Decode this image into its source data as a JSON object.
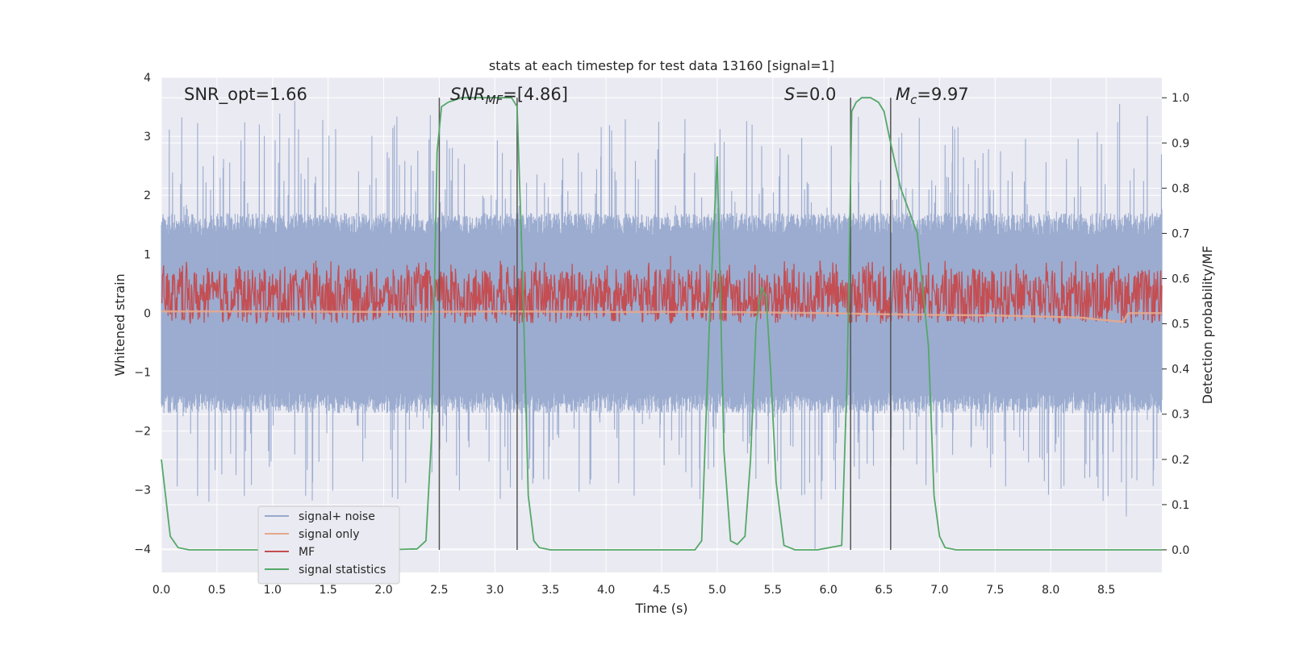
{
  "chart_data": {
    "type": "line",
    "title": "stats at each timestep for test data 13160 [signal=1]",
    "xlabel": "Time (s)",
    "ylabel": "Whitened strain",
    "y2label": "Detection probability/MF",
    "xlim": [
      0,
      9.0
    ],
    "ylim": [
      -4.4,
      4.0
    ],
    "y2lim": [
      -0.05,
      1.045
    ],
    "xticks": [
      "0.0",
      "0.5",
      "1.0",
      "1.5",
      "2.0",
      "2.5",
      "3.0",
      "3.5",
      "4.0",
      "4.5",
      "5.0",
      "5.5",
      "6.0",
      "6.5",
      "7.0",
      "7.5",
      "8.0",
      "8.5"
    ],
    "yticks": [
      "4",
      "3",
      "2",
      "1",
      "0",
      "−1",
      "−2",
      "−3",
      "−4"
    ],
    "y2ticks": [
      "1.0",
      "0.9",
      "0.8",
      "0.7",
      "0.6",
      "0.5",
      "0.4",
      "0.3",
      "0.2",
      "0.1",
      "0.0"
    ],
    "grid": true,
    "annotations": {
      "snr_opt": "SNR_opt=1.66",
      "snr_mf_var": "SNR",
      "snr_mf_sub": "MF",
      "snr_mf_val": "=[4.86]",
      "s_var": "S",
      "s_val": "=0.0",
      "mc_var": "M",
      "mc_sub": "c",
      "mc_val": "=9.97"
    },
    "vlines": [
      2.5,
      3.2,
      6.2,
      6.56
    ],
    "legend": {
      "placement": "lower-left",
      "entries": [
        {
          "label": "signal+ noise",
          "color": "#97a9cd"
        },
        {
          "label": "signal only",
          "color": "#e5a88d"
        },
        {
          "label": "MF",
          "color": "#c44e52"
        },
        {
          "label": "signal statistics",
          "color": "#55a868"
        }
      ]
    },
    "series": [
      {
        "name": "signal statistics",
        "axis": "right",
        "color": "#55a868",
        "x": [
          0.0,
          0.08,
          0.15,
          0.25,
          0.5,
          1.0,
          1.5,
          2.0,
          2.3,
          2.38,
          2.43,
          2.48,
          2.52,
          2.58,
          2.7,
          3.0,
          3.15,
          3.2,
          3.25,
          3.3,
          3.35,
          3.4,
          3.5,
          4.0,
          4.5,
          4.8,
          4.86,
          4.93,
          5.0,
          5.06,
          5.12,
          5.18,
          5.25,
          5.3,
          5.35,
          5.4,
          5.44,
          5.48,
          5.53,
          5.6,
          5.7,
          5.9,
          6.12,
          6.17,
          6.21,
          6.25,
          6.3,
          6.38,
          6.45,
          6.5,
          6.56,
          6.65,
          6.8,
          6.9,
          6.95,
          7.0,
          7.05,
          7.15,
          7.5,
          8.0,
          8.5,
          9.0
        ],
        "y": [
          0.2,
          0.03,
          0.005,
          0.0,
          0.0,
          0.0,
          0.0,
          0.0,
          0.002,
          0.02,
          0.25,
          0.88,
          0.98,
          0.99,
          1.0,
          1.0,
          1.0,
          0.98,
          0.6,
          0.12,
          0.02,
          0.005,
          0.0,
          0.0,
          0.0,
          0.0,
          0.02,
          0.5,
          0.87,
          0.22,
          0.02,
          0.012,
          0.03,
          0.2,
          0.5,
          0.58,
          0.56,
          0.4,
          0.15,
          0.01,
          0.0,
          0.0,
          0.01,
          0.4,
          0.97,
          0.99,
          1.0,
          1.0,
          0.99,
          0.97,
          0.9,
          0.8,
          0.7,
          0.45,
          0.12,
          0.03,
          0.005,
          0.0,
          0.0,
          0.0,
          0.0,
          0.0
        ]
      },
      {
        "name": "signal only",
        "axis": "left",
        "color": "#e5a88d",
        "x": [
          0.0,
          1.0,
          2.0,
          3.0,
          4.0,
          5.0,
          6.0,
          6.5,
          7.0,
          7.5,
          8.0,
          8.3,
          8.5,
          8.65,
          8.7,
          9.0
        ],
        "y": [
          0.03,
          0.03,
          0.02,
          0.03,
          0.02,
          0.02,
          0.0,
          -0.02,
          -0.03,
          -0.04,
          -0.06,
          -0.08,
          -0.12,
          -0.15,
          0.0,
          0.0
        ]
      },
      {
        "name": "MF",
        "axis": "right",
        "color": "#c44e52",
        "x": [
          0.0,
          9.0
        ],
        "y_band": [
          0.5,
          0.62
        ],
        "spikes": [
          {
            "x": 1.39,
            "y": 0.61
          },
          {
            "x": 4.58,
            "y": 0.62
          }
        ]
      },
      {
        "name": "signal+ noise",
        "axis": "left",
        "color": "#97a9cd",
        "x": [
          0.0,
          9.0
        ],
        "y_band": [
          -1.7,
          1.7
        ],
        "peaks": [
          {
            "x": 1.2,
            "y": 3.6
          },
          {
            "x": 8.62,
            "y": 3.55
          },
          {
            "x": 5.88,
            "y": -4.0
          },
          {
            "x": 8.68,
            "y": -3.45
          }
        ]
      }
    ]
  }
}
